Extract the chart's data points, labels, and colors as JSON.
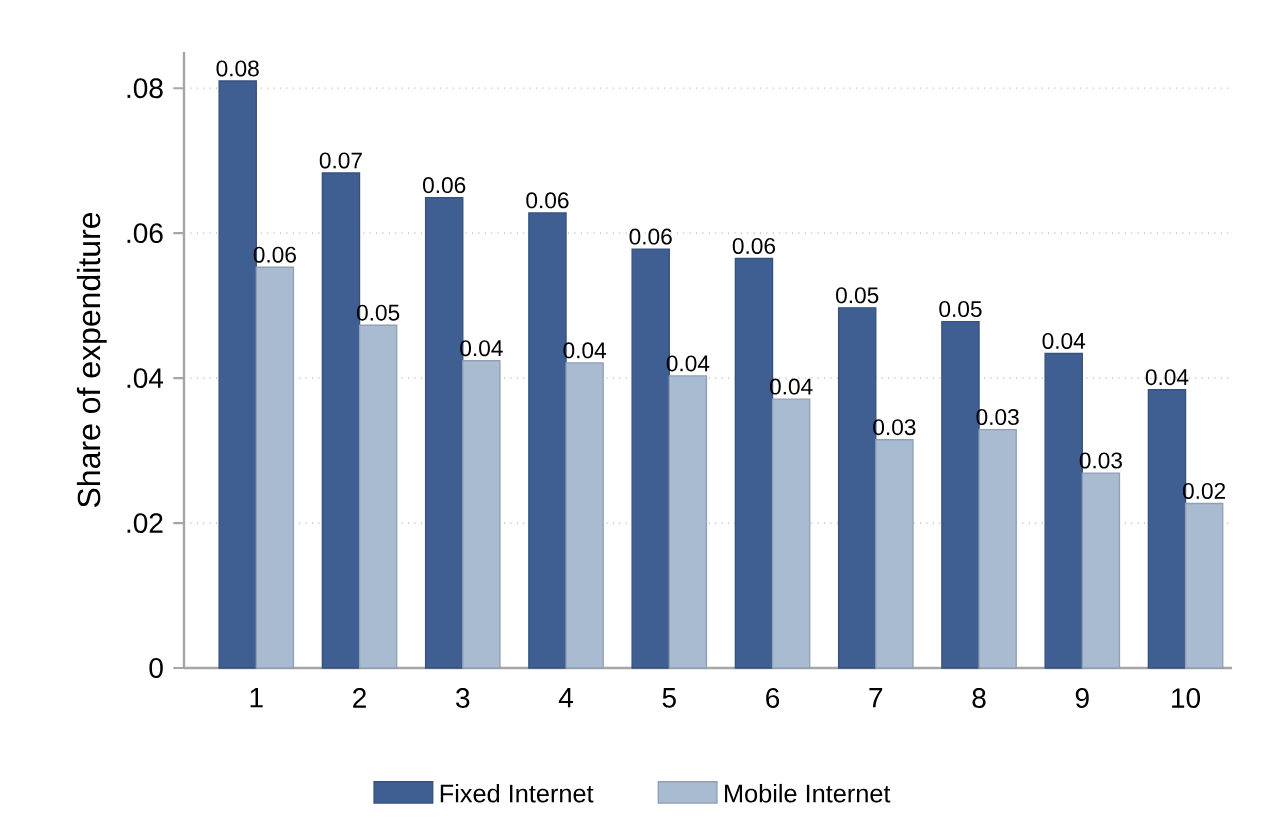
{
  "chart_data": {
    "type": "bar",
    "ylabel": "Share of expenditure",
    "categories": [
      "1",
      "2",
      "3",
      "4",
      "5",
      "6",
      "7",
      "8",
      "9",
      "10"
    ],
    "series": [
      {
        "name": "Fixed Internet",
        "color": "#3f5f93",
        "values": [
          0.081,
          0.0683,
          0.0649,
          0.0628,
          0.0578,
          0.0565,
          0.0497,
          0.0478,
          0.0434,
          0.0384
        ],
        "value_labels": [
          "0.08",
          "0.07",
          "0.06",
          "0.06",
          "0.06",
          "0.06",
          "0.05",
          "0.05",
          "0.04",
          "0.04"
        ]
      },
      {
        "name": "Mobile Internet",
        "color": "#a9bbd1",
        "values": [
          0.0553,
          0.0473,
          0.0424,
          0.0421,
          0.0403,
          0.0371,
          0.0315,
          0.0329,
          0.0269,
          0.0227
        ],
        "value_labels": [
          "0.06",
          "0.05",
          "0.04",
          "0.04",
          "0.04",
          "0.04",
          "0.03",
          "0.03",
          "0.03",
          "0.02"
        ]
      }
    ],
    "ylim": [
      0,
      0.085
    ],
    "yticks": [
      0,
      {
        "value": 0.02,
        "label": ".02"
      },
      {
        "value": 0.04,
        "label": ".04"
      },
      {
        "value": 0.06,
        "label": ".06"
      },
      {
        "value": 0.08,
        "label": ".08"
      }
    ],
    "grid": "y",
    "legend": "bottom"
  }
}
